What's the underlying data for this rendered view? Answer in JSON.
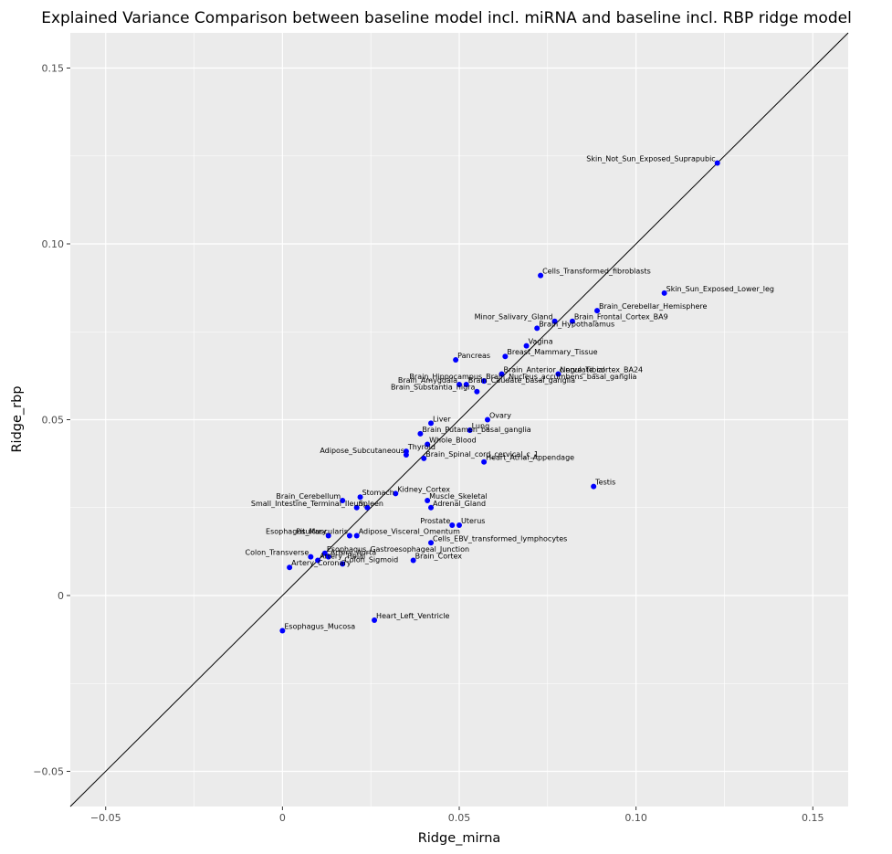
{
  "chart_data": {
    "type": "scatter",
    "title": "Explained Variance Comparison between baseline model incl. miRNA and baseline incl. RBP ridge model",
    "xlabel": "Ridge_mirna",
    "ylabel": "Ridge_rbp",
    "xlim": [
      -0.06,
      0.16
    ],
    "ylim": [
      -0.06,
      0.16
    ],
    "x_ticks": [
      -0.05,
      0,
      0.05,
      0.1,
      0.15
    ],
    "x_tick_labels": [
      "−0.05",
      "0",
      "0.05",
      "0.10",
      "0.15"
    ],
    "y_ticks": [
      -0.05,
      0,
      0.05,
      0.1,
      0.15
    ],
    "y_tick_labels": [
      "−0.05",
      "0",
      "0.05",
      "0.10",
      "0.15"
    ],
    "reference_line": "y = x",
    "grid": true,
    "colors": {
      "panel": "#ebebeb",
      "grid": "#ffffff",
      "point": "#0000ff",
      "line": "#000000"
    },
    "points": [
      {
        "label": "Skin_Not_Sun_Exposed_Suprapubic",
        "x": 0.123,
        "y": 0.123,
        "anchor": "end"
      },
      {
        "label": "Cells_Transformed_fibroblasts",
        "x": 0.073,
        "y": 0.091,
        "anchor": "start"
      },
      {
        "label": "Skin_Sun_Exposed_Lower_leg",
        "x": 0.108,
        "y": 0.086,
        "anchor": "start"
      },
      {
        "label": "Brain_Cerebellar_Hemisphere",
        "x": 0.089,
        "y": 0.081,
        "anchor": "start"
      },
      {
        "label": "Brain_Frontal_Cortex_BA9",
        "x": 0.082,
        "y": 0.078,
        "anchor": "start"
      },
      {
        "label": "Minor_Salivary_Gland",
        "x": 0.077,
        "y": 0.078,
        "anchor": "end"
      },
      {
        "label": "Brain_Hypothalamus",
        "x": 0.072,
        "y": 0.076,
        "anchor": "start"
      },
      {
        "label": "Vagina",
        "x": 0.069,
        "y": 0.071,
        "anchor": "start"
      },
      {
        "label": "Pancreas",
        "x": 0.049,
        "y": 0.067,
        "anchor": "start"
      },
      {
        "label": "Breast_Mammary_Tissue",
        "x": 0.063,
        "y": 0.068,
        "anchor": "start"
      },
      {
        "label": "Nerve_Tibial",
        "x": 0.078,
        "y": 0.063,
        "anchor": "start"
      },
      {
        "label": "Brain_Hippocampus",
        "x": 0.057,
        "y": 0.061,
        "anchor": "end"
      },
      {
        "label": "Brain_Anterior_cingulate_cortex_BA24",
        "x": 0.062,
        "y": 0.063,
        "anchor": "start"
      },
      {
        "label": "Brain_Amygdala",
        "x": 0.05,
        "y": 0.06,
        "anchor": "end"
      },
      {
        "label": "Brain_Caudate_basal_ganglia",
        "x": 0.052,
        "y": 0.06,
        "anchor": "start"
      },
      {
        "label": "Brain_Substantia_nigra",
        "x": 0.055,
        "y": 0.058,
        "anchor": "end"
      },
      {
        "label": "Brain_Nucleus_accumbens_basal_ganglia",
        "x": 0.057,
        "y": 0.061,
        "anchor": "start"
      },
      {
        "label": "Ovary",
        "x": 0.058,
        "y": 0.05,
        "anchor": "start"
      },
      {
        "label": "Liver",
        "x": 0.042,
        "y": 0.049,
        "anchor": "start"
      },
      {
        "label": "Lung",
        "x": 0.053,
        "y": 0.047,
        "anchor": "start"
      },
      {
        "label": "Brain_Putamen_basal_ganglia",
        "x": 0.039,
        "y": 0.046,
        "anchor": "start"
      },
      {
        "label": "Whole_Blood",
        "x": 0.041,
        "y": 0.043,
        "anchor": "start"
      },
      {
        "label": "Thyroid",
        "x": 0.035,
        "y": 0.041,
        "anchor": "start"
      },
      {
        "label": "Brain_Spinal_cord_cervical_c_1",
        "x": 0.04,
        "y": 0.039,
        "anchor": "start"
      },
      {
        "label": "Adipose_Subcutaneous",
        "x": 0.035,
        "y": 0.04,
        "anchor": "end"
      },
      {
        "label": "Heart_Atrial_Appendage",
        "x": 0.057,
        "y": 0.038,
        "anchor": "start"
      },
      {
        "label": "Testis",
        "x": 0.088,
        "y": 0.031,
        "anchor": "start"
      },
      {
        "label": "Kidney_Cortex",
        "x": 0.032,
        "y": 0.029,
        "anchor": "start"
      },
      {
        "label": "Brain_Cerebellum",
        "x": 0.017,
        "y": 0.027,
        "anchor": "end"
      },
      {
        "label": "Stomach",
        "x": 0.022,
        "y": 0.028,
        "anchor": "start"
      },
      {
        "label": "Small_Intestine_Terminal_Ileum",
        "x": 0.024,
        "y": 0.025,
        "anchor": "end"
      },
      {
        "label": "Spleen",
        "x": 0.021,
        "y": 0.025,
        "anchor": "start"
      },
      {
        "label": "Muscle_Skeletal",
        "x": 0.041,
        "y": 0.027,
        "anchor": "start"
      },
      {
        "label": "Adrenal_Gland",
        "x": 0.042,
        "y": 0.025,
        "anchor": "start"
      },
      {
        "label": "Prostate",
        "x": 0.048,
        "y": 0.02,
        "anchor": "end"
      },
      {
        "label": "Uterus",
        "x": 0.05,
        "y": 0.02,
        "anchor": "start"
      },
      {
        "label": "Pituitary",
        "x": 0.013,
        "y": 0.017,
        "anchor": "end"
      },
      {
        "label": "Adipose_Visceral_Omentum",
        "x": 0.021,
        "y": 0.017,
        "anchor": "start"
      },
      {
        "label": "Cells_EBV_transformed_lymphocytes",
        "x": 0.042,
        "y": 0.015,
        "anchor": "start"
      },
      {
        "label": "Esophagus_Muscularis",
        "x": 0.019,
        "y": 0.017,
        "anchor": "end"
      },
      {
        "label": "Esophagus_Gastroesophageal_Junction",
        "x": 0.012,
        "y": 0.012,
        "anchor": "start"
      },
      {
        "label": "Colon_Transverse",
        "x": 0.008,
        "y": 0.011,
        "anchor": "end"
      },
      {
        "label": "Artery_Aorta",
        "x": 0.013,
        "y": 0.011,
        "anchor": "start"
      },
      {
        "label": "Brain_Cortex",
        "x": 0.037,
        "y": 0.01,
        "anchor": "start"
      },
      {
        "label": "Artery_Tibial",
        "x": 0.01,
        "y": 0.01,
        "anchor": "start"
      },
      {
        "label": "Colon_Sigmoid",
        "x": 0.017,
        "y": 0.009,
        "anchor": "start"
      },
      {
        "label": "Artery_Coronary",
        "x": 0.002,
        "y": 0.008,
        "anchor": "start"
      },
      {
        "label": "Heart_Left_Ventricle",
        "x": 0.026,
        "y": -0.007,
        "anchor": "start"
      },
      {
        "label": "Esophagus_Mucosa",
        "x": 0.0,
        "y": -0.01,
        "anchor": "start"
      }
    ]
  }
}
